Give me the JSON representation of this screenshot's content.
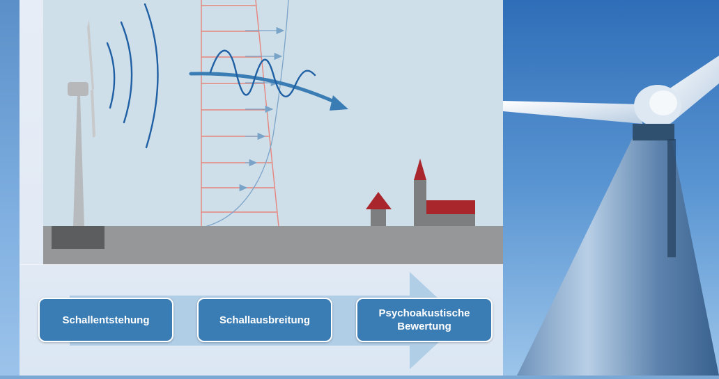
{
  "process": {
    "stages": [
      {
        "label": "Schallentstehung"
      },
      {
        "label": "Schallausbreitung"
      },
      {
        "label": "Psychoakustische\nBewertung"
      }
    ]
  },
  "colors": {
    "sky": "#cfdfe9",
    "ground": "#959799",
    "ground_block": "#5c5d5f",
    "wave": "#1f5fa3",
    "wind_profile": "#e6857c",
    "velocity_profile": "#7aa3c8",
    "roof": "#a9262d",
    "building": "#7c7e80",
    "stage_fill": "#3a7cb4",
    "band_arrow": "#a9c9e4"
  }
}
